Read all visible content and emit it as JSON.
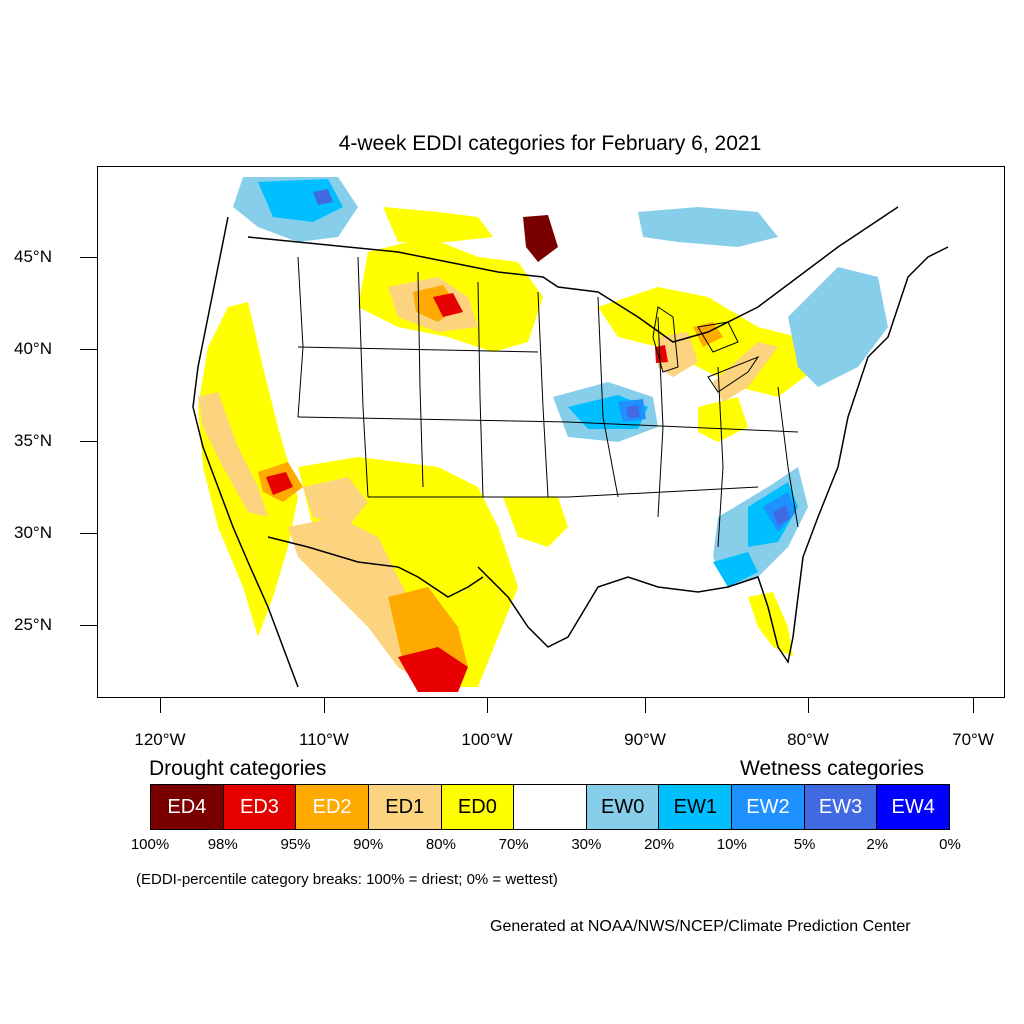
{
  "title": "4-week EDDI categories for February 6, 2021",
  "lat_labels": [
    "45°N",
    "40°N",
    "35°N",
    "30°N",
    "25°N"
  ],
  "lon_labels": [
    "120°W",
    "110°W",
    "100°W",
    "90°W",
    "80°W",
    "70°W"
  ],
  "legend": {
    "drought_heading": "Drought categories",
    "wetness_heading": "Wetness categories",
    "categories": [
      {
        "label": "ED4",
        "color": "#7a0000",
        "text_color": "#ffffff"
      },
      {
        "label": "ED3",
        "color": "#e60000",
        "text_color": "#ffffff"
      },
      {
        "label": "ED2",
        "color": "#ffaa00",
        "text_color": "#ffffff"
      },
      {
        "label": "ED1",
        "color": "#fcd37f",
        "text_color": "#000000"
      },
      {
        "label": "ED0",
        "color": "#ffff00",
        "text_color": "#000000"
      },
      {
        "label": "",
        "color": "#ffffff",
        "text_color": "#000000"
      },
      {
        "label": "EW0",
        "color": "#87ceeb",
        "text_color": "#000000"
      },
      {
        "label": "EW1",
        "color": "#00bfff",
        "text_color": "#000000"
      },
      {
        "label": "EW2",
        "color": "#1e90ff",
        "text_color": "#ffffff"
      },
      {
        "label": "EW3",
        "color": "#4169e1",
        "text_color": "#ffffff"
      },
      {
        "label": "EW4",
        "color": "#0000ff",
        "text_color": "#ffffff"
      }
    ],
    "percentiles": [
      "100%",
      "98%",
      "95%",
      "90%",
      "80%",
      "70%",
      "30%",
      "20%",
      "10%",
      "5%",
      "2%",
      "0%"
    ]
  },
  "note": "(EDDI-percentile category breaks: 100% = driest; 0% = wettest)",
  "credit": "Generated at NOAA/NWS/NCEP/Climate Prediction Center",
  "colors": {
    "ED4": "#7a0000",
    "ED3": "#e60000",
    "ED2": "#ffaa00",
    "ED1": "#fcd37f",
    "ED0": "#ffff00",
    "EW0": "#87ceeb",
    "EW1": "#00bfff",
    "EW2": "#1e90ff",
    "EW3": "#4169e1",
    "EW4": "#0000ff"
  }
}
